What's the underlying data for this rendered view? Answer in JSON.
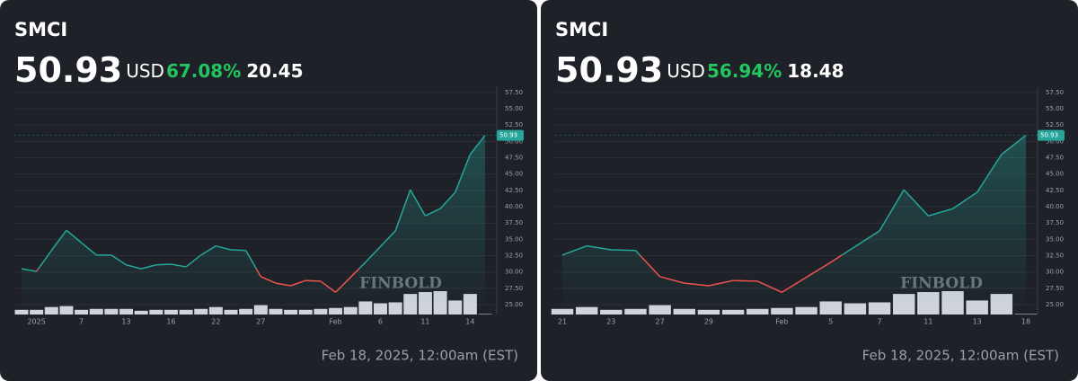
{
  "chart_data": [
    {
      "type": "line",
      "title": "SMCI",
      "price": 50.93,
      "currency": "USD",
      "change": {
        "value": 67.08,
        "label": "67.08%"
      },
      "change_value": 20.45,
      "date": "Feb 18, 2025, 12:00am (EST)",
      "watermark": "FINBOLD",
      "categories": [
        null,
        "2025",
        null,
        null,
        "7",
        null,
        null,
        "13",
        null,
        null,
        "16",
        null,
        null,
        "22",
        null,
        null,
        "27",
        null,
        null,
        null,
        null,
        "Feb",
        null,
        null,
        "6",
        null,
        null,
        "11",
        null,
        null,
        "14",
        null
      ],
      "values": [
        30.5,
        30.1,
        33.3,
        36.4,
        34.5,
        32.6,
        32.6,
        31.1,
        30.5,
        31.1,
        31.2,
        30.8,
        32.6,
        34.0,
        33.4,
        33.3,
        29.3,
        28.3,
        27.9,
        28.7,
        28.6,
        26.9,
        29.2,
        31.5,
        33.9,
        36.3,
        42.6,
        38.6,
        39.7,
        42.2,
        48.0,
        50.93
      ],
      "volume": [
        5,
        5,
        8,
        9,
        5,
        6,
        6,
        6,
        4,
        5,
        5,
        5,
        6,
        8,
        5,
        6,
        10,
        6,
        5,
        5,
        6,
        7,
        8,
        14,
        12,
        13,
        22,
        24,
        25,
        15,
        22,
        0.5
      ],
      "colors": {
        "up": "#26a69a",
        "down": "#ef5350",
        "volume": "#d1d4dc"
      },
      "ylim": [
        23.5,
        58.3
      ],
      "yticks": [
        {
          "value": 25,
          "label": "25.00"
        },
        {
          "value": 27.5,
          "label": "27.50"
        },
        {
          "value": 30,
          "label": "30.00"
        },
        {
          "value": 32.5,
          "label": "32.50"
        },
        {
          "value": 35,
          "label": "35.00"
        },
        {
          "value": 37.5,
          "label": "37.50"
        },
        {
          "value": 40,
          "label": "40.00"
        },
        {
          "value": 42.5,
          "label": "42.50"
        },
        {
          "value": 45,
          "label": "45.00"
        },
        {
          "value": 47.5,
          "label": "47.50"
        },
        {
          "value": 50,
          "label": "50.00"
        },
        {
          "value": 52.5,
          "label": "52.50"
        },
        {
          "value": 55,
          "label": "55.00"
        },
        {
          "value": 57.5,
          "label": "57.50"
        }
      ],
      "grid": true
    },
    {
      "type": "line",
      "title": "SMCI",
      "price": 50.93,
      "currency": "USD",
      "change": {
        "value": 56.94,
        "label": "56.94%"
      },
      "change_value": 18.48,
      "date": "Feb 18, 2025, 12:00am (EST)",
      "watermark": "FINBOLD",
      "categories": [
        "21",
        null,
        "23",
        null,
        "27",
        null,
        "29",
        null,
        null,
        "Feb",
        null,
        "5",
        null,
        "7",
        null,
        "11",
        null,
        "13",
        null,
        "18"
      ],
      "values": [
        32.6,
        34.0,
        33.4,
        33.3,
        29.3,
        28.3,
        27.9,
        28.7,
        28.6,
        26.9,
        29.2,
        31.5,
        33.9,
        36.3,
        42.6,
        38.6,
        39.7,
        42.2,
        48.0,
        50.93
      ],
      "volume": [
        6,
        8,
        5,
        6,
        10,
        6,
        5,
        5,
        6,
        7,
        8,
        14,
        12,
        13,
        22,
        24,
        25,
        15,
        22,
        0.5
      ],
      "colors": {
        "up": "#26a69a",
        "down": "#ef5350",
        "volume": "#d1d4dc"
      },
      "ylim": [
        23.5,
        58.3
      ],
      "yticks": [
        {
          "value": 25,
          "label": "25.00"
        },
        {
          "value": 27.5,
          "label": "27.50"
        },
        {
          "value": 30,
          "label": "30.00"
        },
        {
          "value": 32.5,
          "label": "32.50"
        },
        {
          "value": 35,
          "label": "35.00"
        },
        {
          "value": 37.5,
          "label": "37.50"
        },
        {
          "value": 40,
          "label": "40.00"
        },
        {
          "value": 42.5,
          "label": "42.50"
        },
        {
          "value": 45,
          "label": "45.00"
        },
        {
          "value": 47.5,
          "label": "47.50"
        },
        {
          "value": 50,
          "label": "50.00"
        },
        {
          "value": 52.5,
          "label": "52.50"
        },
        {
          "value": 55,
          "label": "55.00"
        },
        {
          "value": 57.5,
          "label": "57.50"
        }
      ],
      "grid": true
    }
  ]
}
